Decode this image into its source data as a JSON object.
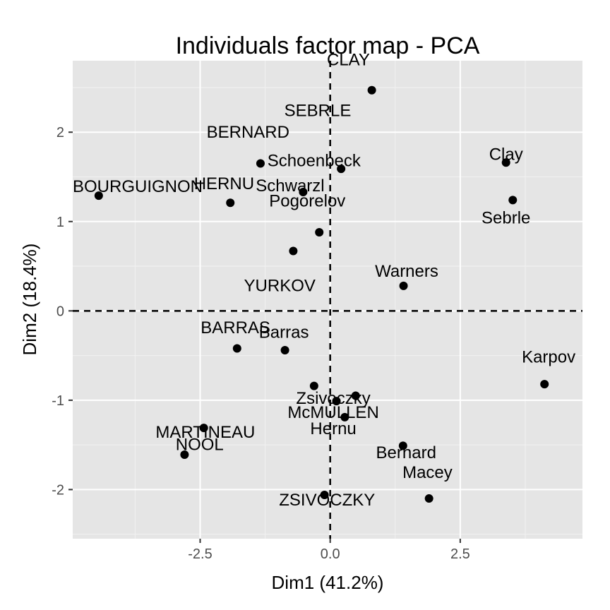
{
  "chart_data": {
    "type": "scatter",
    "title": "Individuals factor map - PCA",
    "xlabel": "Dim1 (41.2%)",
    "ylabel": "Dim2 (18.4%)",
    "xlim": [
      -4.95,
      4.85
    ],
    "ylim": [
      -2.55,
      2.8
    ],
    "x_ticks": [
      -2.5,
      0,
      2.5
    ],
    "x_tick_labels": [
      "-2.5",
      "0.0",
      "2.5"
    ],
    "y_ticks": [
      -2,
      -1,
      0,
      1,
      2
    ],
    "y_tick_labels": [
      "-2",
      "-1",
      "0",
      "1",
      "2"
    ],
    "points": [
      {
        "x": 0.8,
        "y": 2.47
      },
      {
        "x": 0.21,
        "y": 1.59
      },
      {
        "x": -1.34,
        "y": 1.65
      },
      {
        "x": -0.52,
        "y": 1.33
      },
      {
        "x": -1.92,
        "y": 1.21
      },
      {
        "x": -4.45,
        "y": 1.29
      },
      {
        "x": -0.21,
        "y": 0.88
      },
      {
        "x": -0.71,
        "y": 0.67
      },
      {
        "x": 3.38,
        "y": 1.66
      },
      {
        "x": 3.51,
        "y": 1.24
      },
      {
        "x": 1.41,
        "y": 0.28
      },
      {
        "x": 4.12,
        "y": -0.82
      },
      {
        "x": -1.79,
        "y": -0.42
      },
      {
        "x": -0.87,
        "y": -0.44
      },
      {
        "x": -0.31,
        "y": -0.84
      },
      {
        "x": 0.12,
        "y": -1.01
      },
      {
        "x": 0.49,
        "y": -0.95
      },
      {
        "x": 0.28,
        "y": -1.19
      },
      {
        "x": -2.43,
        "y": -1.31
      },
      {
        "x": -2.8,
        "y": -1.61
      },
      {
        "x": 1.4,
        "y": -1.51
      },
      {
        "x": 1.9,
        "y": -2.1
      },
      {
        "x": -0.11,
        "y": -2.06
      }
    ],
    "labels": [
      {
        "text": "CLAY",
        "x": 0.35,
        "y": 2.75,
        "anchor": "middle"
      },
      {
        "text": "SEBRLE",
        "x": -0.24,
        "y": 2.18,
        "anchor": "middle"
      },
      {
        "text": "BERNARD",
        "x": -1.58,
        "y": 1.94,
        "anchor": "middle"
      },
      {
        "text": "Schoenbeck",
        "x": -0.31,
        "y": 1.62,
        "anchor": "middle"
      },
      {
        "text": "HERNU",
        "x": -2.04,
        "y": 1.36,
        "anchor": "middle"
      },
      {
        "text": "Schwarzl",
        "x": -0.77,
        "y": 1.34,
        "anchor": "middle"
      },
      {
        "text": "BOURGUIGNON",
        "x": -4.95,
        "y": 1.33,
        "anchor": "start"
      },
      {
        "text": "Pogorelov",
        "x": -0.44,
        "y": 1.17,
        "anchor": "middle"
      },
      {
        "text": "YURKOV",
        "x": -0.97,
        "y": 0.22,
        "anchor": "middle"
      },
      {
        "text": "Clay",
        "x": 3.38,
        "y": 1.69,
        "anchor": "middle"
      },
      {
        "text": "Sebrle",
        "x": 3.38,
        "y": 0.98,
        "anchor": "middle"
      },
      {
        "text": "Warners",
        "x": 1.47,
        "y": 0.38,
        "anchor": "middle"
      },
      {
        "text": "Karpov",
        "x": 4.2,
        "y": -0.58,
        "anchor": "middle"
      },
      {
        "text": "BARRAS",
        "x": -1.82,
        "y": -0.25,
        "anchor": "middle"
      },
      {
        "text": "Barras",
        "x": -0.89,
        "y": -0.3,
        "anchor": "middle"
      },
      {
        "text": "Zsivoczky",
        "x": 0.06,
        "y": -1.04,
        "anchor": "middle"
      },
      {
        "text": "McMULLEN",
        "x": 0.06,
        "y": -1.2,
        "anchor": "middle"
      },
      {
        "text": "Hernu",
        "x": 0.06,
        "y": -1.38,
        "anchor": "middle"
      },
      {
        "text": "MARTINEAU",
        "x": -2.4,
        "y": -1.42,
        "anchor": "middle"
      },
      {
        "text": "NOOL",
        "x": -2.51,
        "y": -1.56,
        "anchor": "middle"
      },
      {
        "text": "Bernard",
        "x": 1.46,
        "y": -1.65,
        "anchor": "middle"
      },
      {
        "text": "Macey",
        "x": 1.87,
        "y": -1.87,
        "anchor": "middle"
      },
      {
        "text": "ZSIVOCZKY",
        "x": -0.06,
        "y": -2.18,
        "anchor": "middle"
      }
    ],
    "grid": true,
    "reference_lines": {
      "x": 0,
      "y": 0
    }
  },
  "colors": {
    "panel_background": "#e5e5e5",
    "grid": "#ffffff",
    "point": "#000000"
  }
}
